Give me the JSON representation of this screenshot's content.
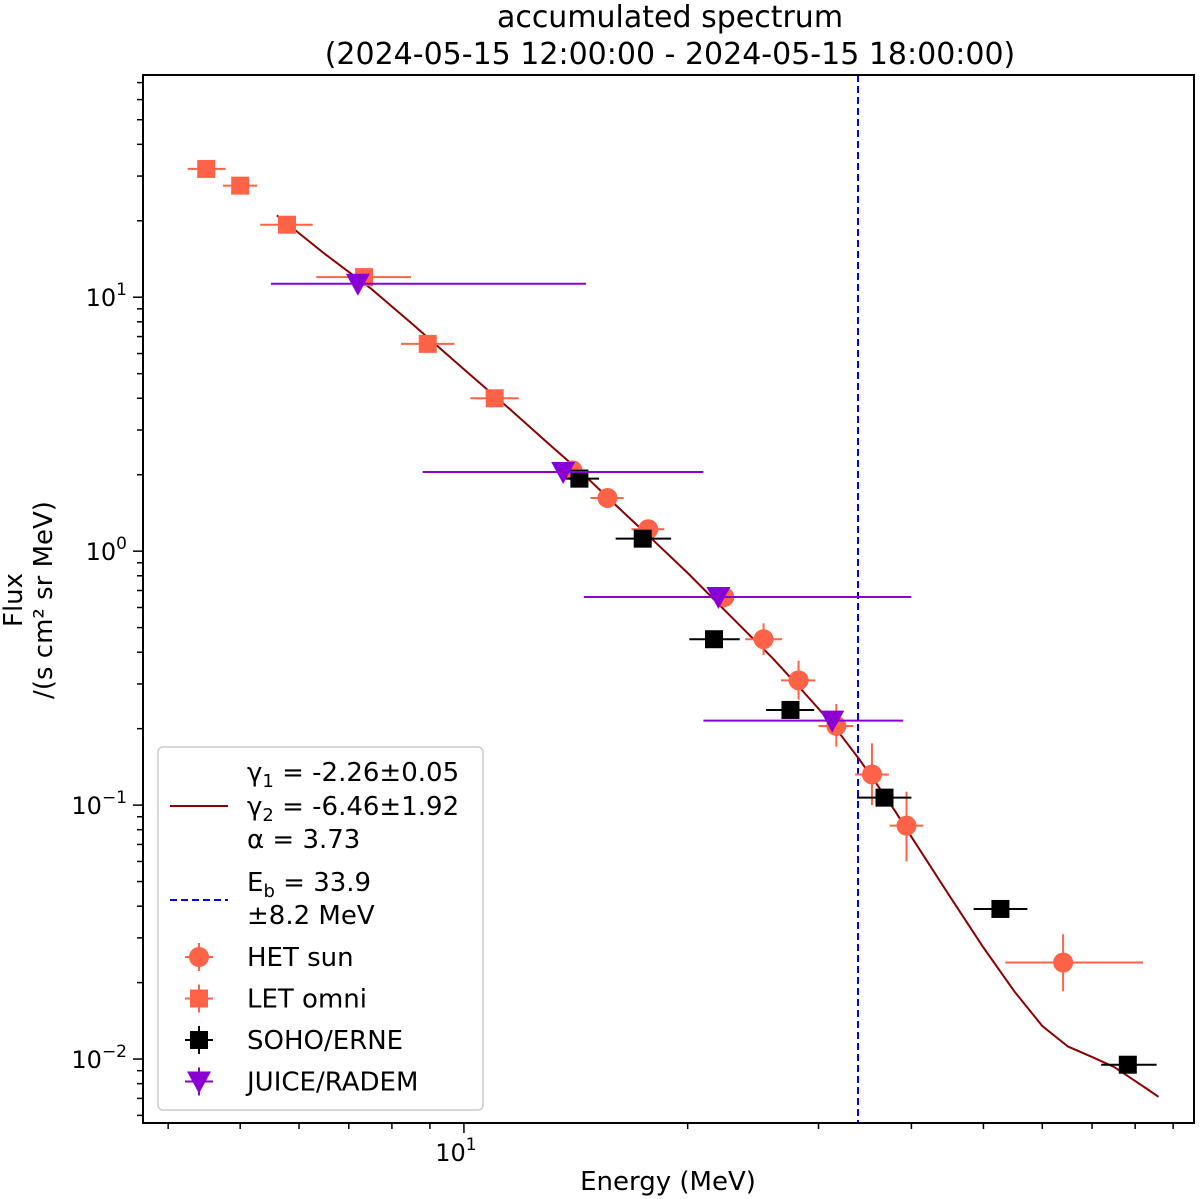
{
  "chart_data": {
    "type": "scatter",
    "title": "accumulated spectrum",
    "subtitle": "(2024-05-15 12:00:00 - 2024-05-15 18:00:00)",
    "xlabel": "Energy (MeV)",
    "ylabel_line1": "Flux",
    "ylabel_line2": "/(s cm² sr MeV)",
    "xscale": "log",
    "yscale": "log",
    "xlim": [
      3.7,
      96
    ],
    "ylim": [
      0.0056,
      75
    ],
    "x_ticks": [
      {
        "value": 10,
        "base": "10",
        "exp": "1"
      }
    ],
    "y_ticks": [
      {
        "value": 10,
        "base": "10",
        "exp": "1"
      },
      {
        "value": 1,
        "base": "10",
        "exp": "0"
      },
      {
        "value": 0.1,
        "base": "10",
        "exp": "−1"
      },
      {
        "value": 0.01,
        "base": "10",
        "exp": "−2"
      }
    ],
    "colors": {
      "het": "#ff6347",
      "let": "#ff6347",
      "erne": "#000000",
      "radem": "#8a00d4",
      "fit": "#8b0000",
      "break": "#0000ff"
    },
    "series": [
      {
        "name": "HET sun",
        "marker": "circle",
        "points": [
          {
            "x": 14.0,
            "y": 2.08,
            "xlo": 13.3,
            "xhi": 14.7,
            "ylo": 1.95,
            "yhi": 2.22
          },
          {
            "x": 15.6,
            "y": 1.62,
            "xlo": 14.8,
            "xhi": 16.4,
            "ylo": 1.52,
            "yhi": 1.73
          },
          {
            "x": 17.7,
            "y": 1.22,
            "xlo": 16.8,
            "xhi": 18.6,
            "ylo": 1.13,
            "yhi": 1.3
          },
          {
            "x": 22.4,
            "y": 0.66,
            "xlo": 21.2,
            "xhi": 23.6,
            "ylo": 0.6,
            "yhi": 0.72
          },
          {
            "x": 25.3,
            "y": 0.45,
            "xlo": 23.9,
            "xhi": 26.8,
            "ylo": 0.39,
            "yhi": 0.52
          },
          {
            "x": 28.2,
            "y": 0.31,
            "xlo": 26.7,
            "xhi": 29.7,
            "ylo": 0.26,
            "yhi": 0.37
          },
          {
            "x": 31.7,
            "y": 0.205,
            "xlo": 30.0,
            "xhi": 33.4,
            "ylo": 0.17,
            "yhi": 0.25
          },
          {
            "x": 35.4,
            "y": 0.132,
            "xlo": 33.6,
            "xhi": 37.3,
            "ylo": 0.1,
            "yhi": 0.175
          },
          {
            "x": 39.4,
            "y": 0.083,
            "xlo": 37.4,
            "xhi": 41.5,
            "ylo": 0.06,
            "yhi": 0.113
          },
          {
            "x": 64.0,
            "y": 0.024,
            "xlo": 53.5,
            "xhi": 82.0,
            "ylo": 0.0185,
            "yhi": 0.031
          }
        ]
      },
      {
        "name": "LET omni",
        "marker": "square",
        "points": [
          {
            "x": 4.5,
            "y": 32.0,
            "xlo": 4.25,
            "xhi": 4.78,
            "ylo": 30.5,
            "yhi": 33.5
          },
          {
            "x": 5.0,
            "y": 27.5,
            "xlo": 4.74,
            "xhi": 5.27,
            "ylo": 26.2,
            "yhi": 28.9
          },
          {
            "x": 5.78,
            "y": 19.3,
            "xlo": 5.32,
            "xhi": 6.26,
            "ylo": 18.4,
            "yhi": 20.3
          },
          {
            "x": 7.34,
            "y": 12.0,
            "xlo": 6.33,
            "xhi": 8.49,
            "ylo": 11.5,
            "yhi": 12.6
          },
          {
            "x": 8.94,
            "y": 6.55,
            "xlo": 8.23,
            "xhi": 9.71,
            "ylo": 6.25,
            "yhi": 6.85
          },
          {
            "x": 11.0,
            "y": 4.0,
            "xlo": 10.2,
            "xhi": 11.85,
            "ylo": 3.82,
            "yhi": 4.18
          }
        ]
      },
      {
        "name": "SOHO/ERNE",
        "marker": "square",
        "points": [
          {
            "x": 14.3,
            "y": 1.93,
            "xlo": 13.5,
            "xhi": 15.2,
            "ylo": 1.85,
            "yhi": 2.01
          },
          {
            "x": 17.4,
            "y": 1.12,
            "xlo": 16.0,
            "xhi": 19.0,
            "ylo": 1.08,
            "yhi": 1.16
          },
          {
            "x": 21.7,
            "y": 0.45,
            "xlo": 20.1,
            "xhi": 23.5,
            "ylo": 0.43,
            "yhi": 0.47
          },
          {
            "x": 27.5,
            "y": 0.237,
            "xlo": 25.5,
            "xhi": 29.6,
            "ylo": 0.227,
            "yhi": 0.247
          },
          {
            "x": 36.8,
            "y": 0.107,
            "xlo": 33.8,
            "xhi": 40.0,
            "ylo": 0.102,
            "yhi": 0.112
          },
          {
            "x": 52.7,
            "y": 0.039,
            "xlo": 48.5,
            "xhi": 57.3,
            "ylo": 0.0372,
            "yhi": 0.0408
          },
          {
            "x": 78.2,
            "y": 0.0095,
            "xlo": 72.0,
            "xhi": 85.5,
            "ylo": 0.0091,
            "yhi": 0.0099
          }
        ]
      },
      {
        "name": "JUICE/RADEM",
        "marker": "triangle-down",
        "points": [
          {
            "x": 7.2,
            "y": 11.3,
            "xlo": 5.5,
            "xhi": 14.6
          },
          {
            "x": 13.6,
            "y": 2.05,
            "xlo": 8.8,
            "xhi": 21.0
          },
          {
            "x": 22.0,
            "y": 0.66,
            "xlo": 14.5,
            "xhi": 40.0
          },
          {
            "x": 31.3,
            "y": 0.215,
            "xlo": 21.0,
            "xhi": 39.0
          }
        ]
      }
    ],
    "fit": {
      "name": "broken power law fit",
      "points": [
        [
          5.6,
          21.0
        ],
        [
          6.5,
          14.8
        ],
        [
          7.5,
          10.8
        ],
        [
          8.5,
          7.9
        ],
        [
          10.0,
          5.2
        ],
        [
          11.5,
          3.65
        ],
        [
          13.0,
          2.65
        ],
        [
          14.5,
          2.0
        ],
        [
          16.0,
          1.52
        ],
        [
          18.0,
          1.1
        ],
        [
          20.0,
          0.82
        ],
        [
          22.0,
          0.62
        ],
        [
          24.0,
          0.48
        ],
        [
          26.0,
          0.38
        ],
        [
          28.0,
          0.3
        ],
        [
          30.0,
          0.24
        ],
        [
          32.0,
          0.192
        ],
        [
          34.0,
          0.152
        ],
        [
          36.0,
          0.12
        ],
        [
          38.0,
          0.095
        ],
        [
          40.0,
          0.075
        ],
        [
          45.0,
          0.044
        ],
        [
          50.0,
          0.0275
        ],
        [
          55.0,
          0.0185
        ],
        [
          60.0,
          0.0135
        ],
        [
          65.0,
          0.0112
        ],
        [
          70.0,
          0.0102
        ],
        [
          75.0,
          0.0093
        ],
        [
          80.0,
          0.0082
        ],
        [
          86.0,
          0.0071
        ]
      ]
    },
    "break_energy": 33.9,
    "legend": {
      "position": "lower-left",
      "fit_lines": [
        "γ₁ = -2.26±0.05",
        "γ₂ = -6.46±1.92",
        "α =  3.73"
      ],
      "break_lines": [
        "E_b =  33.9",
        "±8.2 MeV"
      ],
      "entries": [
        "HET sun",
        "LET omni",
        "SOHO/ERNE",
        "JUICE/RADEM"
      ]
    }
  }
}
